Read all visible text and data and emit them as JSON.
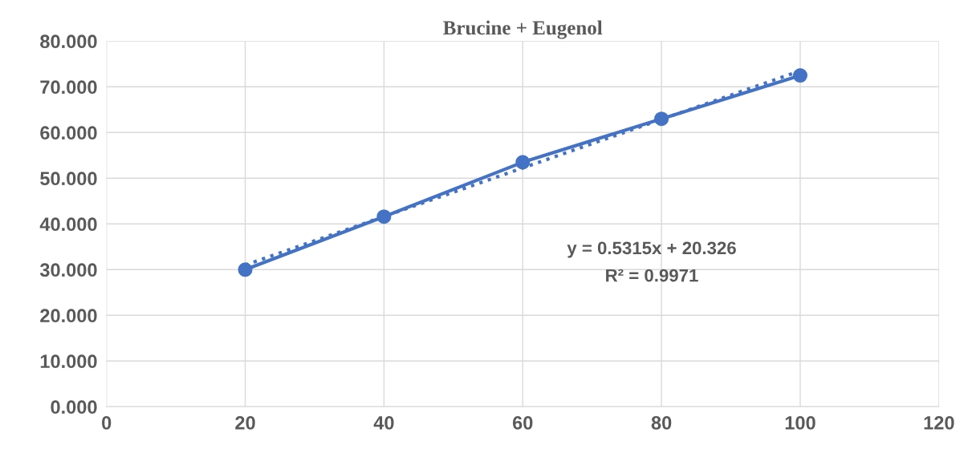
{
  "chart_data": {
    "type": "line",
    "title": "Brucine + Eugenol",
    "x": [
      20,
      40,
      60,
      80,
      100
    ],
    "series": [
      {
        "color": "#4472c4",
        "marker": "circle",
        "line_style": "solid",
        "values": [
          30.0,
          41.6,
          53.5,
          63.0,
          72.5
        ]
      },
      {
        "color": "#4472c4",
        "marker": "none",
        "line_style": "dotted",
        "x": [
          20,
          100
        ],
        "values": [
          31.0,
          73.5
        ]
      }
    ],
    "xlim": [
      0,
      120
    ],
    "xticks": [
      0,
      20,
      40,
      60,
      80,
      100,
      120
    ],
    "ylim": [
      0,
      80
    ],
    "yticks": [
      {
        "value": 0,
        "label": "0.000"
      },
      {
        "value": 10,
        "label": "10.000"
      },
      {
        "value": 20,
        "label": "20.000"
      },
      {
        "value": 30,
        "label": "30.000"
      },
      {
        "value": 40,
        "label": "40.000"
      },
      {
        "value": 50,
        "label": "50.000"
      },
      {
        "value": 60,
        "label": "60.000"
      },
      {
        "value": 70,
        "label": "70.000"
      },
      {
        "value": 80,
        "label": "80.000"
      }
    ],
    "grid": true,
    "annotations": [
      "y = 0.5315x + 20.326",
      "R² = 0.9971"
    ]
  }
}
